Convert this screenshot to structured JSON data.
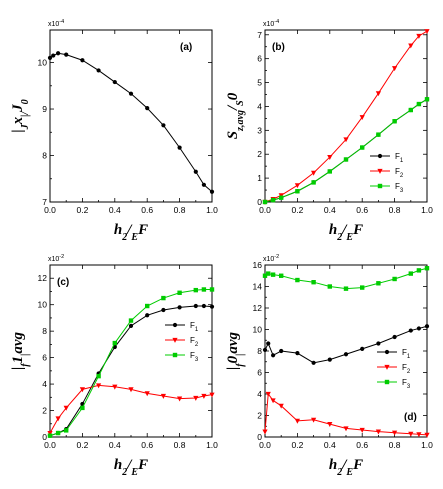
{
  "colors": {
    "F1": "#000000",
    "F2": "#ff0000",
    "F3": "#00cc00"
  },
  "chart_data": [
    {
      "panel": "(a)",
      "type": "line",
      "ylabel_parts": [
        "|",
        "J",
        "x",
        "|/",
        "J",
        "0"
      ],
      "xlabel_parts": [
        "h",
        "2",
        "/",
        "E",
        "F"
      ],
      "multiplier": "x10",
      "multiplier_exp": "-4",
      "xlim": [
        0,
        1
      ],
      "ylim": [
        7,
        10.7
      ],
      "xticks": [
        0.0,
        0.2,
        0.4,
        0.6,
        0.8,
        1.0
      ],
      "xtick_labels": [
        "0.0",
        "0.2",
        "0.4",
        "0.6",
        "0.8",
        "1.0"
      ],
      "yticks": [
        7,
        8,
        9,
        10
      ],
      "ytick_labels": [
        "7",
        "8",
        "9",
        "10"
      ],
      "legend": null,
      "series": [
        {
          "key": "F1",
          "marker": "circle",
          "x": [
            0,
            0.02,
            0.05,
            0.1,
            0.2,
            0.3,
            0.4,
            0.5,
            0.6,
            0.7,
            0.8,
            0.9,
            0.95,
            1.0
          ],
          "y": [
            10.1,
            10.15,
            10.2,
            10.17,
            10.05,
            9.83,
            9.58,
            9.33,
            9.02,
            8.65,
            8.17,
            7.65,
            7.37,
            7.22
          ]
        }
      ]
    },
    {
      "panel": "(b)",
      "type": "line",
      "ylabel_parts": [
        "S",
        "z,avg",
        "/",
        "S",
        "0"
      ],
      "xlabel_parts": [
        "h",
        "2",
        "/",
        "E",
        "F"
      ],
      "multiplier": "x10",
      "multiplier_exp": "-4",
      "xlim": [
        0,
        1
      ],
      "ylim": [
        0,
        7.2
      ],
      "xticks": [
        0.0,
        0.2,
        0.4,
        0.6,
        0.8,
        1.0
      ],
      "xtick_labels": [
        "0.0",
        "0.2",
        "0.4",
        "0.6",
        "0.8",
        "1.0"
      ],
      "yticks": [
        0,
        1,
        2,
        3,
        4,
        5,
        6,
        7
      ],
      "ytick_labels": [
        "0",
        "1",
        "2",
        "3",
        "4",
        "5",
        "6",
        "7"
      ],
      "legend": {
        "placement": "right",
        "entries": [
          [
            "F",
            "1"
          ],
          [
            "F",
            "2"
          ],
          [
            "F",
            "3"
          ]
        ]
      },
      "series": [
        {
          "key": "F1",
          "marker": "circle",
          "x": [
            0,
            0.05,
            0.1,
            0.2,
            0.3,
            0.4,
            0.5,
            0.6,
            0.7,
            0.8,
            0.9,
            0.95,
            1.0
          ],
          "y": [
            0,
            0.08,
            0.18,
            0.45,
            0.82,
            1.28,
            1.78,
            2.28,
            2.82,
            3.38,
            3.85,
            4.1,
            4.3
          ]
        },
        {
          "key": "F2",
          "marker": "triangle-down",
          "x": [
            0,
            0.05,
            0.1,
            0.2,
            0.3,
            0.4,
            0.5,
            0.6,
            0.7,
            0.8,
            0.9,
            0.95,
            1.0
          ],
          "y": [
            0,
            0.12,
            0.28,
            0.7,
            1.22,
            1.88,
            2.62,
            3.55,
            4.55,
            5.6,
            6.55,
            6.95,
            7.15
          ]
        },
        {
          "key": "F3",
          "marker": "square",
          "x": [
            0,
            0.05,
            0.1,
            0.2,
            0.3,
            0.4,
            0.5,
            0.6,
            0.7,
            0.8,
            0.9,
            0.95,
            1.0
          ],
          "y": [
            0,
            0.08,
            0.18,
            0.45,
            0.82,
            1.28,
            1.78,
            2.28,
            2.82,
            3.38,
            3.85,
            4.1,
            4.3
          ]
        }
      ]
    },
    {
      "panel": "(c)",
      "type": "line",
      "ylabel_parts": [
        "|",
        "f",
        "1",
        "|",
        "avg"
      ],
      "xlabel_parts": [
        "h",
        "2",
        "/",
        "E",
        "F"
      ],
      "multiplier": "x10",
      "multiplier_exp": "-2",
      "xlim": [
        0,
        1
      ],
      "ylim": [
        0,
        13
      ],
      "xticks": [
        0.0,
        0.2,
        0.4,
        0.6,
        0.8,
        1.0
      ],
      "xtick_labels": [
        "0.0",
        "0.2",
        "0.4",
        "0.6",
        "0.8",
        "1.0"
      ],
      "yticks": [
        0,
        2,
        4,
        6,
        8,
        10,
        12
      ],
      "ytick_labels": [
        "0",
        "2",
        "4",
        "6",
        "8",
        "10",
        "12"
      ],
      "legend": {
        "placement": "right",
        "entries": [
          [
            "F",
            "1"
          ],
          [
            "F",
            "2"
          ],
          [
            "F",
            "3"
          ]
        ]
      },
      "series": [
        {
          "key": "F1",
          "marker": "circle",
          "x": [
            0,
            0.05,
            0.1,
            0.2,
            0.3,
            0.4,
            0.5,
            0.6,
            0.7,
            0.8,
            0.9,
            0.95,
            1.0
          ],
          "y": [
            0.1,
            0.3,
            0.6,
            2.5,
            4.8,
            6.8,
            8.4,
            9.2,
            9.6,
            9.8,
            9.9,
            9.9,
            9.85
          ]
        },
        {
          "key": "F2",
          "marker": "triangle-down",
          "x": [
            0,
            0.05,
            0.1,
            0.2,
            0.3,
            0.4,
            0.5,
            0.6,
            0.7,
            0.8,
            0.9,
            0.95,
            1.0
          ],
          "y": [
            0.3,
            1.4,
            2.2,
            3.6,
            3.9,
            3.8,
            3.6,
            3.3,
            3.1,
            2.9,
            2.95,
            3.1,
            3.2
          ]
        },
        {
          "key": "F3",
          "marker": "square",
          "x": [
            0,
            0.05,
            0.1,
            0.2,
            0.3,
            0.4,
            0.5,
            0.6,
            0.7,
            0.8,
            0.9,
            0.95,
            1.0
          ],
          "y": [
            0.1,
            0.3,
            0.5,
            2.2,
            4.6,
            7.1,
            8.8,
            9.9,
            10.5,
            10.9,
            11.1,
            11.15,
            11.15
          ]
        }
      ]
    },
    {
      "panel": "(d)",
      "type": "line",
      "ylabel_parts": [
        "|",
        "f",
        "0",
        "|",
        "avg"
      ],
      "xlabel_parts": [
        "h",
        "2",
        "/",
        "E",
        "F"
      ],
      "multiplier": "x10",
      "multiplier_exp": "-2",
      "xlim": [
        0,
        1
      ],
      "ylim": [
        0,
        16
      ],
      "xticks": [
        0.0,
        0.2,
        0.4,
        0.6,
        0.8,
        1.0
      ],
      "xtick_labels": [
        "0.0",
        "0.2",
        "0.4",
        "0.6",
        "0.8",
        "1.0"
      ],
      "yticks": [
        0,
        2,
        4,
        6,
        8,
        10,
        12,
        14,
        16
      ],
      "ytick_labels": [
        "0",
        "2",
        "4",
        "6",
        "8",
        "10",
        "12",
        "14",
        "16"
      ],
      "legend": {
        "placement": "right",
        "entries": [
          [
            "F",
            "1"
          ],
          [
            "F",
            "2"
          ],
          [
            "F",
            "3"
          ]
        ]
      },
      "series": [
        {
          "key": "F1",
          "marker": "circle",
          "x": [
            0,
            0.02,
            0.05,
            0.1,
            0.2,
            0.3,
            0.4,
            0.5,
            0.6,
            0.7,
            0.8,
            0.9,
            0.95,
            1.0
          ],
          "y": [
            8.1,
            8.7,
            7.6,
            8.0,
            7.8,
            6.9,
            7.2,
            7.7,
            8.2,
            8.7,
            9.3,
            9.9,
            10.1,
            10.3
          ]
        },
        {
          "key": "F2",
          "marker": "triangle-down",
          "x": [
            0,
            0.02,
            0.05,
            0.1,
            0.2,
            0.3,
            0.4,
            0.5,
            0.6,
            0.7,
            0.8,
            0.9,
            0.95,
            1.0
          ],
          "y": [
            0.5,
            4.0,
            3.4,
            2.9,
            1.5,
            1.6,
            1.2,
            0.8,
            0.65,
            0.5,
            0.4,
            0.3,
            0.25,
            0.2
          ]
        },
        {
          "key": "F3",
          "marker": "square",
          "x": [
            0,
            0.02,
            0.05,
            0.1,
            0.2,
            0.3,
            0.4,
            0.5,
            0.6,
            0.7,
            0.8,
            0.9,
            0.95,
            1.0
          ],
          "y": [
            15.0,
            15.2,
            15.1,
            15.0,
            14.6,
            14.4,
            14.0,
            13.8,
            13.9,
            14.3,
            14.7,
            15.2,
            15.5,
            15.7
          ]
        }
      ]
    }
  ]
}
